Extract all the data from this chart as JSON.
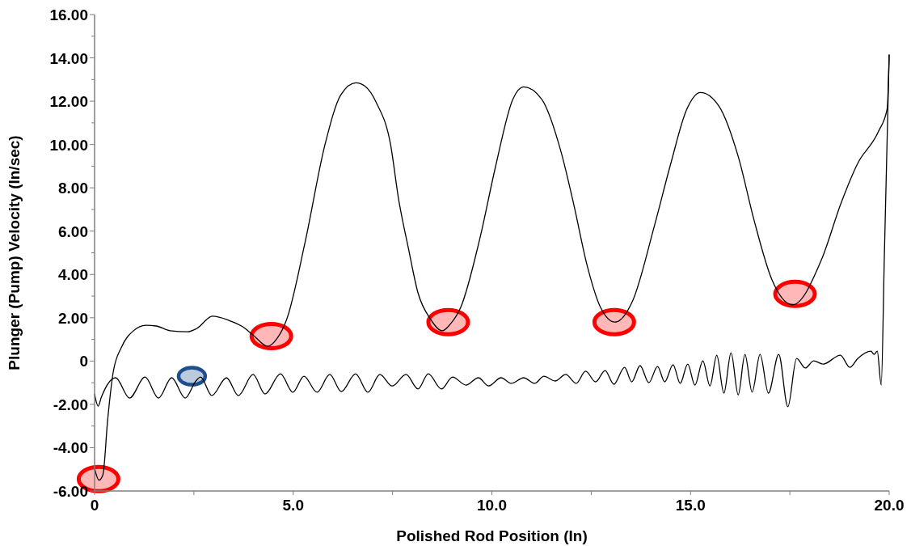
{
  "chart_data": {
    "type": "line",
    "xlabel": "Polished Rod Position (In)",
    "ylabel": "Plunger (Pump) Velocity (In/sec)",
    "xlim": [
      0,
      20
    ],
    "ylim": [
      -6,
      16
    ],
    "xticks": [
      {
        "value": 0,
        "label": "0"
      },
      {
        "value": 2.5,
        "label": null
      },
      {
        "value": 5,
        "label": "5.0"
      },
      {
        "value": 7.5,
        "label": null
      },
      {
        "value": 10,
        "label": "10.0"
      },
      {
        "value": 12.5,
        "label": null
      },
      {
        "value": 15,
        "label": "15.0"
      },
      {
        "value": 17.5,
        "label": null
      },
      {
        "value": 20,
        "label": "20.0"
      }
    ],
    "yticks": [
      {
        "value": -6,
        "label": "-6.00"
      },
      {
        "value": -5,
        "label": null
      },
      {
        "value": -4,
        "label": "-4.00"
      },
      {
        "value": -3,
        "label": null
      },
      {
        "value": -2,
        "label": "-2.00"
      },
      {
        "value": -1,
        "label": null
      },
      0,
      {
        "value": 1,
        "label": null
      },
      {
        "value": 2,
        "label": "2.00"
      },
      {
        "value": 3,
        "label": null
      },
      {
        "value": 4,
        "label": "4.00"
      },
      {
        "value": 5,
        "label": null
      },
      {
        "value": 6,
        "label": "6.00"
      },
      {
        "value": 7,
        "label": null
      },
      {
        "value": 8,
        "label": "8.00"
      },
      {
        "value": 9,
        "label": null
      },
      {
        "value": 10,
        "label": "10.00"
      },
      {
        "value": 11,
        "label": null
      },
      {
        "value": 12,
        "label": "12.00"
      },
      {
        "value": 13,
        "label": null
      },
      {
        "value": 14,
        "label": "14.00"
      },
      {
        "value": 15,
        "label": null
      },
      {
        "value": 16,
        "label": "16.00"
      }
    ],
    "grid": false,
    "marker": "none",
    "line_style": "solid",
    "series": [
      {
        "color": "#000000",
        "x": [
          0,
          0.11,
          0.21,
          0.33,
          0.47,
          0.68,
          0.98,
          1.29,
          1.55,
          1.9,
          2.34,
          2.57,
          2.97,
          3.38,
          3.73,
          3.99,
          4.36,
          4.6,
          4.84,
          5.3,
          5.8,
          6.2,
          6.58,
          6.8,
          7.1,
          7.45,
          7.65,
          7.9,
          8.14,
          8.45,
          8.75,
          8.95,
          9.22,
          9.69,
          10.09,
          10.53,
          10.8,
          11.25,
          11.75,
          12.06,
          12.4,
          12.73,
          13.1,
          13.54,
          14.09,
          14.5,
          14.9,
          15.25,
          15.72,
          16.2,
          16.6,
          17.04,
          17.57,
          18.3,
          18.79,
          19.2,
          19.73,
          19.95,
          20
        ],
        "values": [
          -4.95,
          -5.5,
          -5.25,
          -2.7,
          -0.5,
          0.65,
          1.4,
          1.65,
          1.62,
          1.4,
          1.35,
          1.5,
          2.07,
          1.88,
          1.58,
          1.2,
          0.68,
          1.06,
          1.95,
          5.5,
          10,
          12.3,
          12.85,
          12.7,
          11.9,
          10,
          7.5,
          5.2,
          3.15,
          1.95,
          1.4,
          1.7,
          2.5,
          5.6,
          8.96,
          12.1,
          12.66,
          12.1,
          9.6,
          7.24,
          4.4,
          2.5,
          1.8,
          2.77,
          6.24,
          9.1,
          11.6,
          12.4,
          11.76,
          9.45,
          6.5,
          3.8,
          2.6,
          4.7,
          7.3,
          9.1,
          10.6,
          11.65,
          14.15
        ]
      },
      {
        "color": "#000000",
        "x": [
          0,
          0.09,
          0.17,
          0.53,
          0.88,
          1.27,
          1.61,
          1.94,
          2.28,
          2.55,
          2.67,
          2.95,
          3.32,
          3.62,
          3.99,
          4.29,
          4.68,
          4.99,
          5.27,
          5.6,
          5.92,
          6.21,
          6.57,
          6.88,
          7.18,
          7.49,
          7.84,
          8.14,
          8.4,
          8.73,
          9.01,
          9.35,
          9.66,
          9.92,
          10.23,
          10.49,
          10.8,
          11.08,
          11.31,
          11.59,
          11.86,
          12.12,
          12.36,
          12.61,
          12.85,
          13.07,
          13.34,
          13.52,
          13.73,
          13.95,
          14.17,
          14.35,
          14.56,
          14.74,
          14.93,
          15.11,
          15.31,
          15.49,
          15.66,
          15.84,
          16.02,
          16.2,
          16.37,
          16.55,
          16.75,
          16.96,
          17.22,
          17.45,
          17.67,
          17.89,
          18.1,
          18.34,
          18.77,
          19.01,
          19.21,
          19.54,
          19.62,
          19.7,
          19.8,
          19.88,
          20
        ],
        "values": [
          -1.52,
          -2.08,
          -1.67,
          -0.77,
          -1.71,
          -0.74,
          -1.71,
          -0.77,
          -1.71,
          -0.92,
          -0.74,
          -1.59,
          -0.77,
          -1.59,
          -0.62,
          -1.52,
          -0.59,
          -1.44,
          -0.7,
          -1.44,
          -0.62,
          -1.41,
          -0.59,
          -1.44,
          -0.62,
          -1.15,
          -0.62,
          -1.29,
          -0.59,
          -1.29,
          -0.74,
          -1.11,
          -0.77,
          -1.15,
          -0.77,
          -1.03,
          -0.77,
          -1.03,
          -0.7,
          -0.92,
          -0.62,
          -1.03,
          -0.47,
          -0.96,
          -0.44,
          -1.07,
          -0.29,
          -0.96,
          -0.21,
          -1,
          -0.25,
          -0.96,
          -0.17,
          -1.03,
          -0.14,
          -1.11,
          0.01,
          -1.15,
          0.27,
          -1.48,
          0.38,
          -1.56,
          0.31,
          -1.44,
          0.31,
          -1.48,
          0.31,
          -2.11,
          0.12,
          -0.32,
          0.01,
          -0.14,
          0.27,
          -0.29,
          0.12,
          0.46,
          0.31,
          0.46,
          -1.11,
          4.97,
          14.15
        ]
      }
    ]
  }
}
